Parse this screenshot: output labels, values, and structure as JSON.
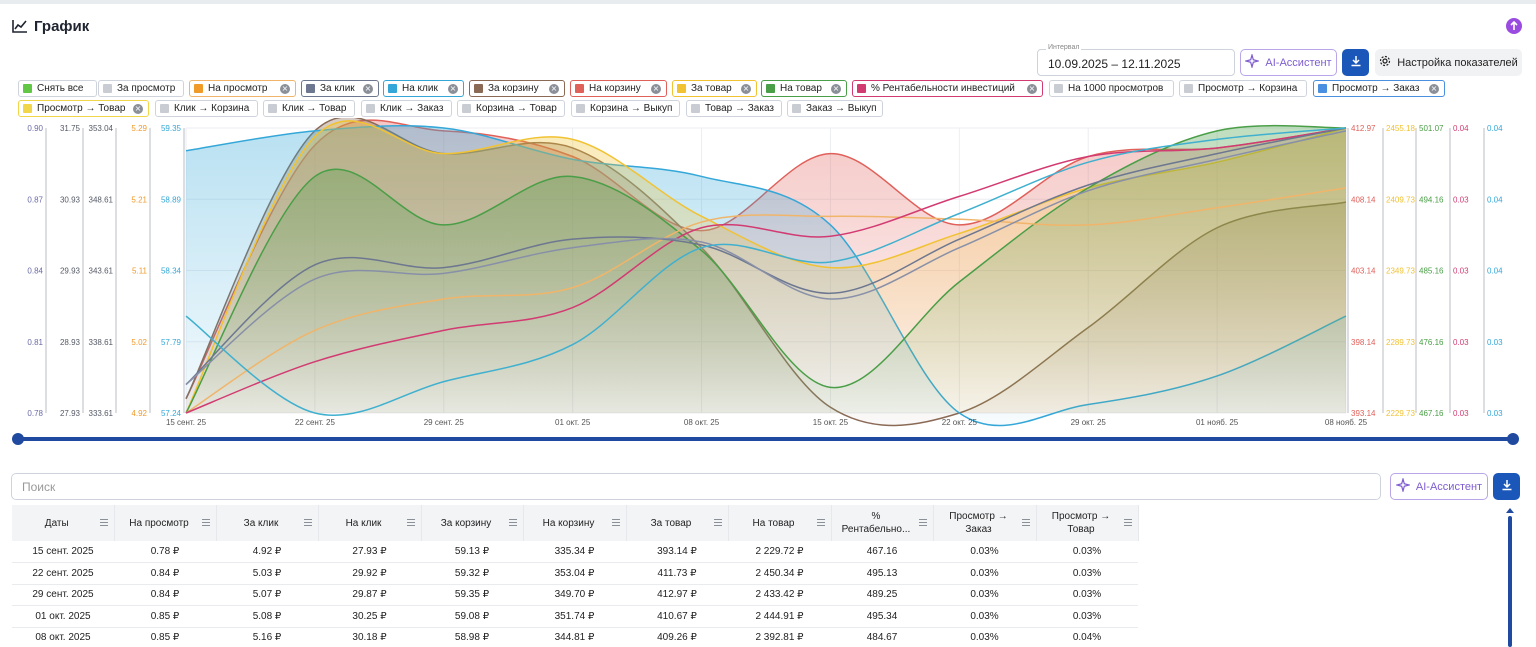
{
  "header": {
    "title": "График",
    "interval_label": "Интервал",
    "interval_value": "10.09.2025 – 12.11.2025",
    "ai_label": "AI-Ассистент",
    "settings_label": "Настройка показателей"
  },
  "colors": {
    "accent": "#1b57b8",
    "ai": "#7e5cd0",
    "upload": "#9b4ce0"
  },
  "chips": [
    {
      "label": "Снять все",
      "color": "#62c744",
      "close": false
    },
    {
      "label": "За просмотр",
      "color": "#c9cdd3",
      "close": false
    },
    {
      "label": "На просмотр",
      "color": "#f09a2a",
      "close": true,
      "border": "#f0b56a"
    },
    {
      "label": "За клик",
      "color": "#6d7790",
      "close": true,
      "border": "#6d7790"
    },
    {
      "label": "На клик",
      "color": "#34a7d8",
      "close": true,
      "border": "#34a7d8"
    },
    {
      "label": "За корзину",
      "color": "#8a6a55",
      "close": true,
      "border": "#8a6a55"
    },
    {
      "label": "На корзину",
      "color": "#e0605a",
      "close": true,
      "border": "#e0605a"
    },
    {
      "label": "За товар",
      "color": "#f1c232",
      "close": true,
      "border": "#f1c232"
    },
    {
      "label": "На товар",
      "color": "#4a9e47",
      "close": true,
      "border": "#4a9e47"
    },
    {
      "label": "% Рентабельности инвестиций",
      "color": "#d23b72",
      "close": true,
      "border": "#d23b72"
    },
    {
      "label": "На 1000 просмотров",
      "color": "#c9cdd3",
      "close": false
    },
    {
      "label": "Просмотр → Корзина",
      "color": "#c9cdd3",
      "close": false
    },
    {
      "label": "Просмотр → Заказ",
      "color": "#4a8fe0",
      "close": true,
      "border": "#4a8fe0"
    },
    {
      "label": "Просмотр → Товар",
      "color": "#f1d64a",
      "close": true,
      "border": "#f1d64a"
    },
    {
      "label": "Клик → Корзина",
      "color": "#c9cdd3",
      "close": false
    },
    {
      "label": "Клик → Товар",
      "color": "#c9cdd3",
      "close": false
    },
    {
      "label": "Клик → Заказ",
      "color": "#c9cdd3",
      "close": false
    },
    {
      "label": "Корзина → Товар",
      "color": "#c9cdd3",
      "close": false
    },
    {
      "label": "Корзина → Выкуп",
      "color": "#c9cdd3",
      "close": false
    },
    {
      "label": "Товар → Заказ",
      "color": "#c9cdd3",
      "close": false
    },
    {
      "label": "Заказ → Выкуп",
      "color": "#c9cdd3",
      "close": false
    }
  ],
  "chart_data": {
    "type": "area",
    "x": [
      "15 сент. 25",
      "22 сент. 25",
      "29 сент. 25",
      "01 окт. 25",
      "08 окт. 25",
      "15 окт. 25",
      "22 окт. 25",
      "29 окт. 25",
      "01 нояб. 25",
      "08 нояб. 25"
    ],
    "axes": [
      {
        "id": "a1",
        "side": "left",
        "color": "#6a6aa8",
        "ticks": [
          "0.90",
          "0.87",
          "0.84",
          "0.81",
          "0.78"
        ]
      },
      {
        "id": "a2",
        "side": "left",
        "color": "#555a66",
        "ticks": [
          "31.75",
          "30.93",
          "29.93",
          "28.93",
          "27.93"
        ]
      },
      {
        "id": "a3",
        "side": "left",
        "color": "#555a66",
        "ticks": [
          "353.04",
          "348.61",
          "343.61",
          "338.61",
          "333.61"
        ]
      },
      {
        "id": "a4",
        "side": "left",
        "color": "#f09a2a",
        "ticks": [
          "5.29",
          "5.21",
          "5.11",
          "5.02",
          "4.92"
        ]
      },
      {
        "id": "a5",
        "side": "left",
        "color": "#34a7d8",
        "ticks": [
          "59.35",
          "58.89",
          "58.34",
          "57.79",
          "57.24"
        ]
      },
      {
        "id": "a6",
        "side": "right",
        "color": "#e0605a",
        "ticks": [
          "412.97",
          "408.14",
          "403.14",
          "398.14",
          "393.14"
        ]
      },
      {
        "id": "a7",
        "side": "right",
        "color": "#f1c232",
        "ticks": [
          "2455.18",
          "2409.73",
          "2349.73",
          "2289.73",
          "2229.73"
        ]
      },
      {
        "id": "a8",
        "side": "right",
        "color": "#4a9e47",
        "ticks": [
          "501.07",
          "494.16",
          "485.16",
          "476.16",
          "467.16"
        ]
      },
      {
        "id": "a9",
        "side": "right",
        "color": "#d23b72",
        "ticks": [
          "0.04",
          "0.03",
          "0.03",
          "0.03",
          "0.03"
        ]
      },
      {
        "id": "a10",
        "side": "right",
        "color": "#34a7d8",
        "ticks": [
          "0.04",
          "0.04",
          "0.04",
          "0.03",
          "0.03"
        ]
      }
    ],
    "series": [
      {
        "name": "На корзину",
        "color": "#e0605a",
        "fill": true,
        "values": [
          0.05,
          0.94,
          0.99,
          0.9,
          0.64,
          0.91,
          0.66,
          0.9,
          0.93,
          1.0
        ]
      },
      {
        "name": "За корзину",
        "color": "#8a6a55",
        "fill": true,
        "values": [
          0.05,
          0.99,
          0.91,
          0.93,
          0.58,
          0.02,
          0.0,
          0.3,
          0.65,
          0.74
        ]
      },
      {
        "name": "На клик",
        "color": "#34a7d8",
        "fill": true,
        "values": [
          0.92,
          0.99,
          1.0,
          0.89,
          0.83,
          0.66,
          0.0,
          0.03,
          0.13,
          0.34
        ]
      },
      {
        "name": "За товар",
        "color": "#f1c232",
        "fill": true,
        "values": [
          0.0,
          0.97,
          0.91,
          0.96,
          0.69,
          0.51,
          0.63,
          0.79,
          0.88,
          1.0
        ]
      },
      {
        "name": "На товар",
        "color": "#4a9e47",
        "fill": true,
        "values": [
          0.0,
          0.83,
          0.66,
          0.83,
          0.57,
          0.09,
          0.46,
          0.79,
          0.99,
          1.0
        ]
      },
      {
        "name": "На просмотр",
        "color": "#f0b56a",
        "fill": false,
        "values": [
          0.0,
          0.29,
          0.4,
          0.44,
          0.67,
          0.69,
          0.68,
          0.66,
          0.72,
          0.79
        ]
      },
      {
        "name": "% Рентабельности инвестиций",
        "color": "#d23b72",
        "fill": false,
        "values": [
          0.0,
          0.18,
          0.29,
          0.37,
          0.65,
          0.62,
          0.76,
          0.9,
          0.93,
          1.0
        ]
      },
      {
        "name": "За клик",
        "color": "#6d7790",
        "fill": false,
        "values": [
          0.1,
          0.52,
          0.51,
          0.61,
          0.59,
          0.42,
          0.61,
          0.8,
          0.91,
          1.0
        ]
      },
      {
        "name": "Просмотр → Заказ",
        "color": "#8890a8",
        "fill": false,
        "values": [
          0.1,
          0.47,
          0.49,
          0.58,
          0.6,
          0.4,
          0.58,
          0.78,
          0.89,
          0.99
        ]
      },
      {
        "name": "Просмотр → Товар",
        "color": "#3fb0cf",
        "fill": false,
        "values": [
          0.34,
          0.0,
          0.11,
          0.24,
          0.58,
          0.53,
          0.7,
          0.88,
          0.96,
          1.0
        ]
      }
    ],
    "grid": true,
    "legend": "top"
  },
  "search": {
    "placeholder": "Поиск"
  },
  "table": {
    "columns": [
      "Даты",
      "На просмотр",
      "За клик",
      "На клик",
      "За корзину",
      "На корзину",
      "За товар",
      "На товар",
      "% Рентабельно...",
      "Просмотр → Заказ",
      "Просмотр → Товар"
    ],
    "column_lines": [
      [
        "Даты"
      ],
      [
        "На просмотр"
      ],
      [
        "За клик"
      ],
      [
        "На клик"
      ],
      [
        "За корзину"
      ],
      [
        "На корзину"
      ],
      [
        "За товар"
      ],
      [
        "На товар"
      ],
      [
        "%",
        "Рентабельно..."
      ],
      [
        "Просмотр →",
        "Заказ"
      ],
      [
        "Просмотр →",
        "Товар"
      ]
    ],
    "rows": [
      [
        "15 сент. 2025",
        "0.78 ₽",
        "4.92 ₽",
        "27.93 ₽",
        "59.13 ₽",
        "335.34 ₽",
        "393.14 ₽",
        "2 229.72 ₽",
        "467.16",
        "0.03%",
        "0.03%"
      ],
      [
        "22 сент. 2025",
        "0.84 ₽",
        "5.03 ₽",
        "29.92 ₽",
        "59.32 ₽",
        "353.04 ₽",
        "411.73 ₽",
        "2 450.34 ₽",
        "495.13",
        "0.03%",
        "0.03%"
      ],
      [
        "29 сент. 2025",
        "0.84 ₽",
        "5.07 ₽",
        "29.87 ₽",
        "59.35 ₽",
        "349.70 ₽",
        "412.97 ₽",
        "2 433.42 ₽",
        "489.25",
        "0.03%",
        "0.03%"
      ],
      [
        "01 окт. 2025",
        "0.85 ₽",
        "5.08 ₽",
        "30.25 ₽",
        "59.08 ₽",
        "351.74 ₽",
        "410.67 ₽",
        "2 444.91 ₽",
        "495.34",
        "0.03%",
        "0.03%"
      ],
      [
        "08 окт. 2025",
        "0.85 ₽",
        "5.16 ₽",
        "30.18 ₽",
        "58.98 ₽",
        "344.81 ₽",
        "409.26 ₽",
        "2 392.81 ₽",
        "484.67",
        "0.03%",
        "0.04%"
      ]
    ]
  }
}
